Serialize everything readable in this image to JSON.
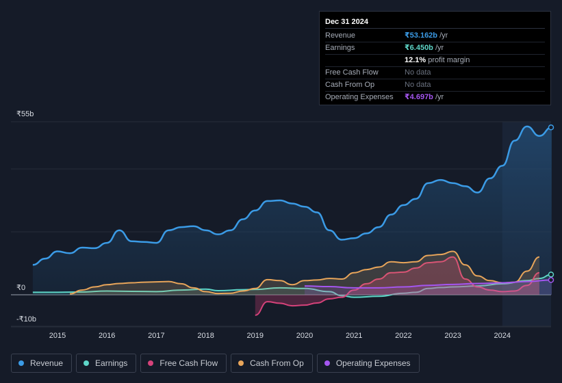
{
  "tooltip": {
    "date": "Dec 31 2024",
    "rows": [
      {
        "label": "Revenue",
        "value": "₹53.162b",
        "unit": " /yr",
        "color": "#3b9be6"
      },
      {
        "label": "Earnings",
        "value": "₹6.450b",
        "unit": " /yr",
        "color": "#5ed6c8"
      },
      {
        "label": "",
        "value": "12.1%",
        "unit": " profit margin",
        "color": "#ffffff"
      },
      {
        "label": "Free Cash Flow",
        "value": "No data",
        "unit": "",
        "color": ""
      },
      {
        "label": "Cash From Op",
        "value": "No data",
        "unit": "",
        "color": ""
      },
      {
        "label": "Operating Expenses",
        "value": "₹4.697b",
        "unit": " /yr",
        "color": "#a456f0"
      }
    ]
  },
  "legend": [
    {
      "label": "Revenue",
      "color": "#3b9be6"
    },
    {
      "label": "Earnings",
      "color": "#5ed6c8"
    },
    {
      "label": "Free Cash Flow",
      "color": "#d6427a"
    },
    {
      "label": "Cash From Op",
      "color": "#e8a55a"
    },
    {
      "label": "Operating Expenses",
      "color": "#a456f0"
    }
  ],
  "chart_data": {
    "type": "line",
    "title": "",
    "y_tick_labels": [
      "₹55b",
      "₹0",
      "-₹10b"
    ],
    "ylim": [
      -10,
      55
    ],
    "xlim": [
      2014.5,
      2025.0
    ],
    "x_ticks": [
      2015,
      2016,
      2017,
      2018,
      2019,
      2020,
      2021,
      2022,
      2023,
      2024
    ],
    "highlight_start": 2024.0,
    "series": [
      {
        "name": "Revenue",
        "color": "#3b9be6",
        "fill": true,
        "points": [
          [
            2014.5,
            9.5
          ],
          [
            2014.75,
            11.5
          ],
          [
            2015.0,
            13.8
          ],
          [
            2015.25,
            13.2
          ],
          [
            2015.5,
            15
          ],
          [
            2015.75,
            14.8
          ],
          [
            2016.0,
            16.5
          ],
          [
            2016.25,
            20.5
          ],
          [
            2016.5,
            17
          ],
          [
            2016.75,
            16.8
          ],
          [
            2017.0,
            16.5
          ],
          [
            2017.25,
            20.5
          ],
          [
            2017.5,
            21.5
          ],
          [
            2017.75,
            21.8
          ],
          [
            2018.0,
            20.5
          ],
          [
            2018.25,
            19.2
          ],
          [
            2018.5,
            20.5
          ],
          [
            2018.75,
            24
          ],
          [
            2019.0,
            26.8
          ],
          [
            2019.25,
            29.8
          ],
          [
            2019.5,
            30
          ],
          [
            2019.75,
            29
          ],
          [
            2020.0,
            28
          ],
          [
            2020.25,
            26.2
          ],
          [
            2020.5,
            20.5
          ],
          [
            2020.75,
            17.5
          ],
          [
            2021.0,
            18
          ],
          [
            2021.25,
            19.5
          ],
          [
            2021.5,
            21.5
          ],
          [
            2021.75,
            25.5
          ],
          [
            2022.0,
            28.5
          ],
          [
            2022.25,
            30.5
          ],
          [
            2022.5,
            35.5
          ],
          [
            2022.75,
            36.5
          ],
          [
            2023.0,
            35.5
          ],
          [
            2023.25,
            34.5
          ],
          [
            2023.5,
            32.5
          ],
          [
            2023.75,
            37
          ],
          [
            2024.0,
            41
          ],
          [
            2024.25,
            49
          ],
          [
            2024.5,
            53.5
          ],
          [
            2024.75,
            50.5
          ],
          [
            2025.0,
            53.2
          ]
        ]
      },
      {
        "name": "Earnings",
        "color": "#5ed6c8",
        "fill": true,
        "points": [
          [
            2014.5,
            0.8
          ],
          [
            2015.0,
            0.8
          ],
          [
            2015.5,
            0.9
          ],
          [
            2016.0,
            1.2
          ],
          [
            2016.5,
            1.1
          ],
          [
            2017.0,
            1.0
          ],
          [
            2017.5,
            1.5
          ],
          [
            2018.0,
            1.8
          ],
          [
            2018.25,
            1.3
          ],
          [
            2018.75,
            1.6
          ],
          [
            2019.0,
            1.7
          ],
          [
            2019.5,
            2.2
          ],
          [
            2020.0,
            2.0
          ],
          [
            2020.5,
            1.0
          ],
          [
            2020.75,
            -0.3
          ],
          [
            2021.0,
            -0.8
          ],
          [
            2021.5,
            -0.5
          ],
          [
            2022.0,
            0.5
          ],
          [
            2022.25,
            0.8
          ],
          [
            2022.5,
            2.0
          ],
          [
            2022.75,
            2.3
          ],
          [
            2023.0,
            2.5
          ],
          [
            2023.5,
            2.8
          ],
          [
            2024.0,
            3.5
          ],
          [
            2024.5,
            4.5
          ],
          [
            2024.75,
            5.2
          ],
          [
            2025.0,
            6.45
          ]
        ]
      },
      {
        "name": "Free Cash Flow",
        "color": "#d6427a",
        "fill": true,
        "points": [
          [
            2019.0,
            -6.5
          ],
          [
            2019.25,
            -2.2
          ],
          [
            2019.5,
            -2.7
          ],
          [
            2019.75,
            -3.5
          ],
          [
            2020.0,
            -3.3
          ],
          [
            2020.25,
            -2.6
          ],
          [
            2020.5,
            -1.3
          ],
          [
            2020.75,
            -0.8
          ],
          [
            2021.0,
            1.5
          ],
          [
            2021.25,
            3.5
          ],
          [
            2021.5,
            5.0
          ],
          [
            2021.75,
            7.0
          ],
          [
            2022.0,
            7.2
          ],
          [
            2022.25,
            8.5
          ],
          [
            2022.5,
            10.2
          ],
          [
            2022.75,
            10.5
          ],
          [
            2023.0,
            12.0
          ],
          [
            2023.25,
            5.0
          ],
          [
            2023.5,
            2.5
          ],
          [
            2023.75,
            1.5
          ],
          [
            2024.0,
            1.0
          ],
          [
            2024.25,
            1.2
          ],
          [
            2024.5,
            3.0
          ],
          [
            2024.75,
            7.0
          ]
        ]
      },
      {
        "name": "Cash From Op",
        "color": "#e8a55a",
        "fill": true,
        "points": [
          [
            2015.25,
            0.3
          ],
          [
            2015.5,
            1.5
          ],
          [
            2015.75,
            2.5
          ],
          [
            2016.0,
            3.2
          ],
          [
            2016.25,
            3.6
          ],
          [
            2016.5,
            3.8
          ],
          [
            2016.75,
            4.0
          ],
          [
            2017.0,
            4.1
          ],
          [
            2017.25,
            4.2
          ],
          [
            2017.5,
            3.5
          ],
          [
            2017.75,
            2.2
          ],
          [
            2018.0,
            1.0
          ],
          [
            2018.25,
            0.4
          ],
          [
            2018.5,
            0.5
          ],
          [
            2018.75,
            1.2
          ],
          [
            2019.0,
            2.0
          ],
          [
            2019.25,
            4.8
          ],
          [
            2019.5,
            4.5
          ],
          [
            2019.75,
            3.2
          ],
          [
            2020.0,
            4.5
          ],
          [
            2020.25,
            4.7
          ],
          [
            2020.5,
            5.2
          ],
          [
            2020.75,
            5.0
          ],
          [
            2021.0,
            7.0
          ],
          [
            2021.25,
            8.0
          ],
          [
            2021.5,
            8.8
          ],
          [
            2021.75,
            10.5
          ],
          [
            2022.0,
            10.2
          ],
          [
            2022.25,
            10.5
          ],
          [
            2022.5,
            12.5
          ],
          [
            2022.75,
            12.8
          ],
          [
            2023.0,
            13.8
          ],
          [
            2023.25,
            9.5
          ],
          [
            2023.5,
            6.0
          ],
          [
            2023.75,
            4.5
          ],
          [
            2024.0,
            3.8
          ],
          [
            2024.25,
            4.0
          ],
          [
            2024.5,
            7.5
          ],
          [
            2024.75,
            12.0
          ]
        ]
      },
      {
        "name": "Operating Expenses",
        "color": "#a456f0",
        "fill": true,
        "points": [
          [
            2020.0,
            2.8
          ],
          [
            2020.5,
            2.6
          ],
          [
            2021.0,
            2.2
          ],
          [
            2021.5,
            2.2
          ],
          [
            2022.0,
            2.5
          ],
          [
            2022.5,
            3.0
          ],
          [
            2023.0,
            3.3
          ],
          [
            2023.5,
            3.6
          ],
          [
            2024.0,
            3.8
          ],
          [
            2024.5,
            4.2
          ],
          [
            2025.0,
            4.697
          ]
        ]
      }
    ]
  }
}
